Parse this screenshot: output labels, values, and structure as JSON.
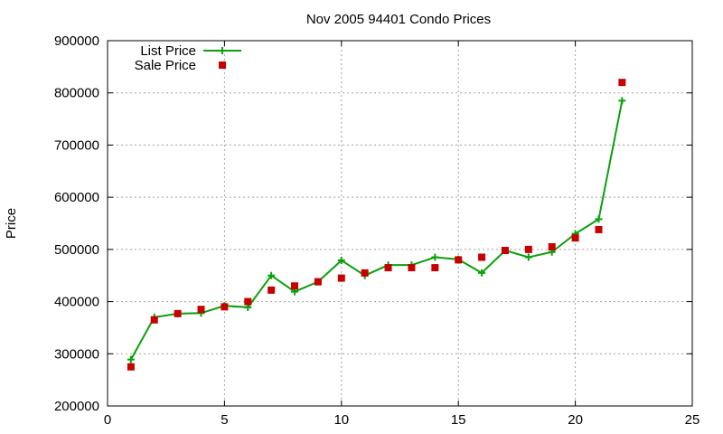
{
  "chart_data": {
    "type": "line",
    "title": "Nov 2005 94401 Condo Prices",
    "xlabel": "",
    "ylabel": "Price",
    "xlim": [
      0,
      25
    ],
    "ylim": [
      200000,
      900000
    ],
    "xticks": [
      0,
      5,
      10,
      15,
      20,
      25
    ],
    "yticks": [
      200000,
      300000,
      400000,
      500000,
      600000,
      700000,
      800000,
      900000
    ],
    "grid": true,
    "legend_position": "top-left",
    "series": [
      {
        "name": "List Price",
        "style": "linespoints",
        "marker": "plus",
        "color": "#0aa00a",
        "x": [
          1,
          2,
          3,
          4,
          5,
          6,
          7,
          8,
          9,
          10,
          11,
          12,
          13,
          14,
          15,
          16,
          17,
          18,
          19,
          20,
          21,
          22
        ],
        "y": [
          289000,
          370000,
          377000,
          378000,
          392000,
          389000,
          450000,
          419000,
          438000,
          479000,
          450000,
          470000,
          470000,
          485000,
          481000,
          455000,
          498000,
          485000,
          495000,
          530000,
          558000,
          785000
        ]
      },
      {
        "name": "Sale Price",
        "style": "points",
        "marker": "square",
        "color": "#c80000",
        "x": [
          1,
          2,
          3,
          4,
          5,
          6,
          7,
          8,
          9,
          10,
          11,
          12,
          13,
          14,
          15,
          16,
          17,
          18,
          19,
          20,
          21,
          22
        ],
        "y": [
          275000,
          365000,
          377000,
          385000,
          390000,
          400000,
          422000,
          430000,
          438000,
          445000,
          455000,
          465000,
          465000,
          465000,
          480000,
          485000,
          498000,
          500000,
          505000,
          522000,
          538000,
          820000
        ]
      }
    ]
  }
}
